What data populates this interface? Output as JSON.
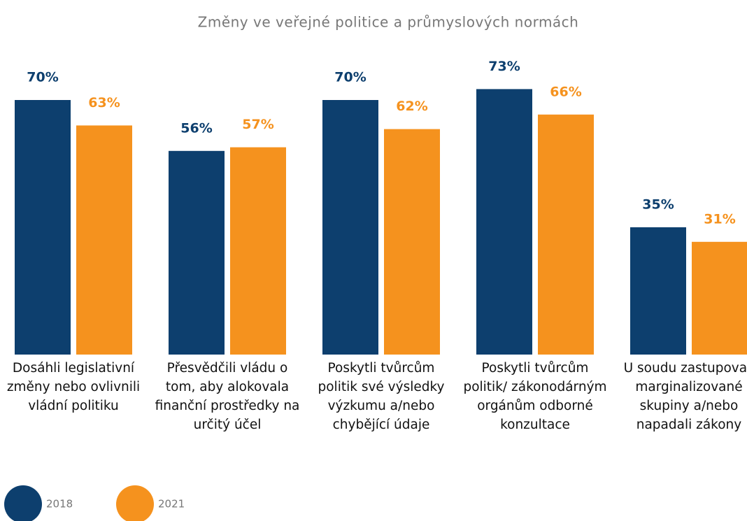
{
  "chart_data": {
    "type": "bar",
    "title": "Změny ve veřejné politice a průmyslových normách",
    "categories": [
      "Dosáhli legislativní změny nebo ovlivnili vládní politiku",
      "Přesvědčili vládu o tom, aby alokovala finanční prostředky na určitý účel",
      "Poskytli tvůrcům politik své výsledky výzkumu a/nebo chybějící údaje",
      "Poskytli tvůrcům politik/ zákonodárným orgánům odborné konzultace",
      "U soudu zastupovali marginalizované skupiny a/nebo napadali zákony"
    ],
    "series": [
      {
        "name": "2018",
        "color": "#0d3f6e",
        "values": [
          70,
          56,
          70,
          73,
          35
        ],
        "value_labels": [
          "70%",
          "56%",
          "70%",
          "73%",
          "35%"
        ]
      },
      {
        "name": "2021",
        "color": "#f5921e",
        "values": [
          63,
          57,
          62,
          66,
          31
        ],
        "value_labels": [
          "63%",
          "57%",
          "62%",
          "66%",
          "31%"
        ]
      }
    ]
  }
}
